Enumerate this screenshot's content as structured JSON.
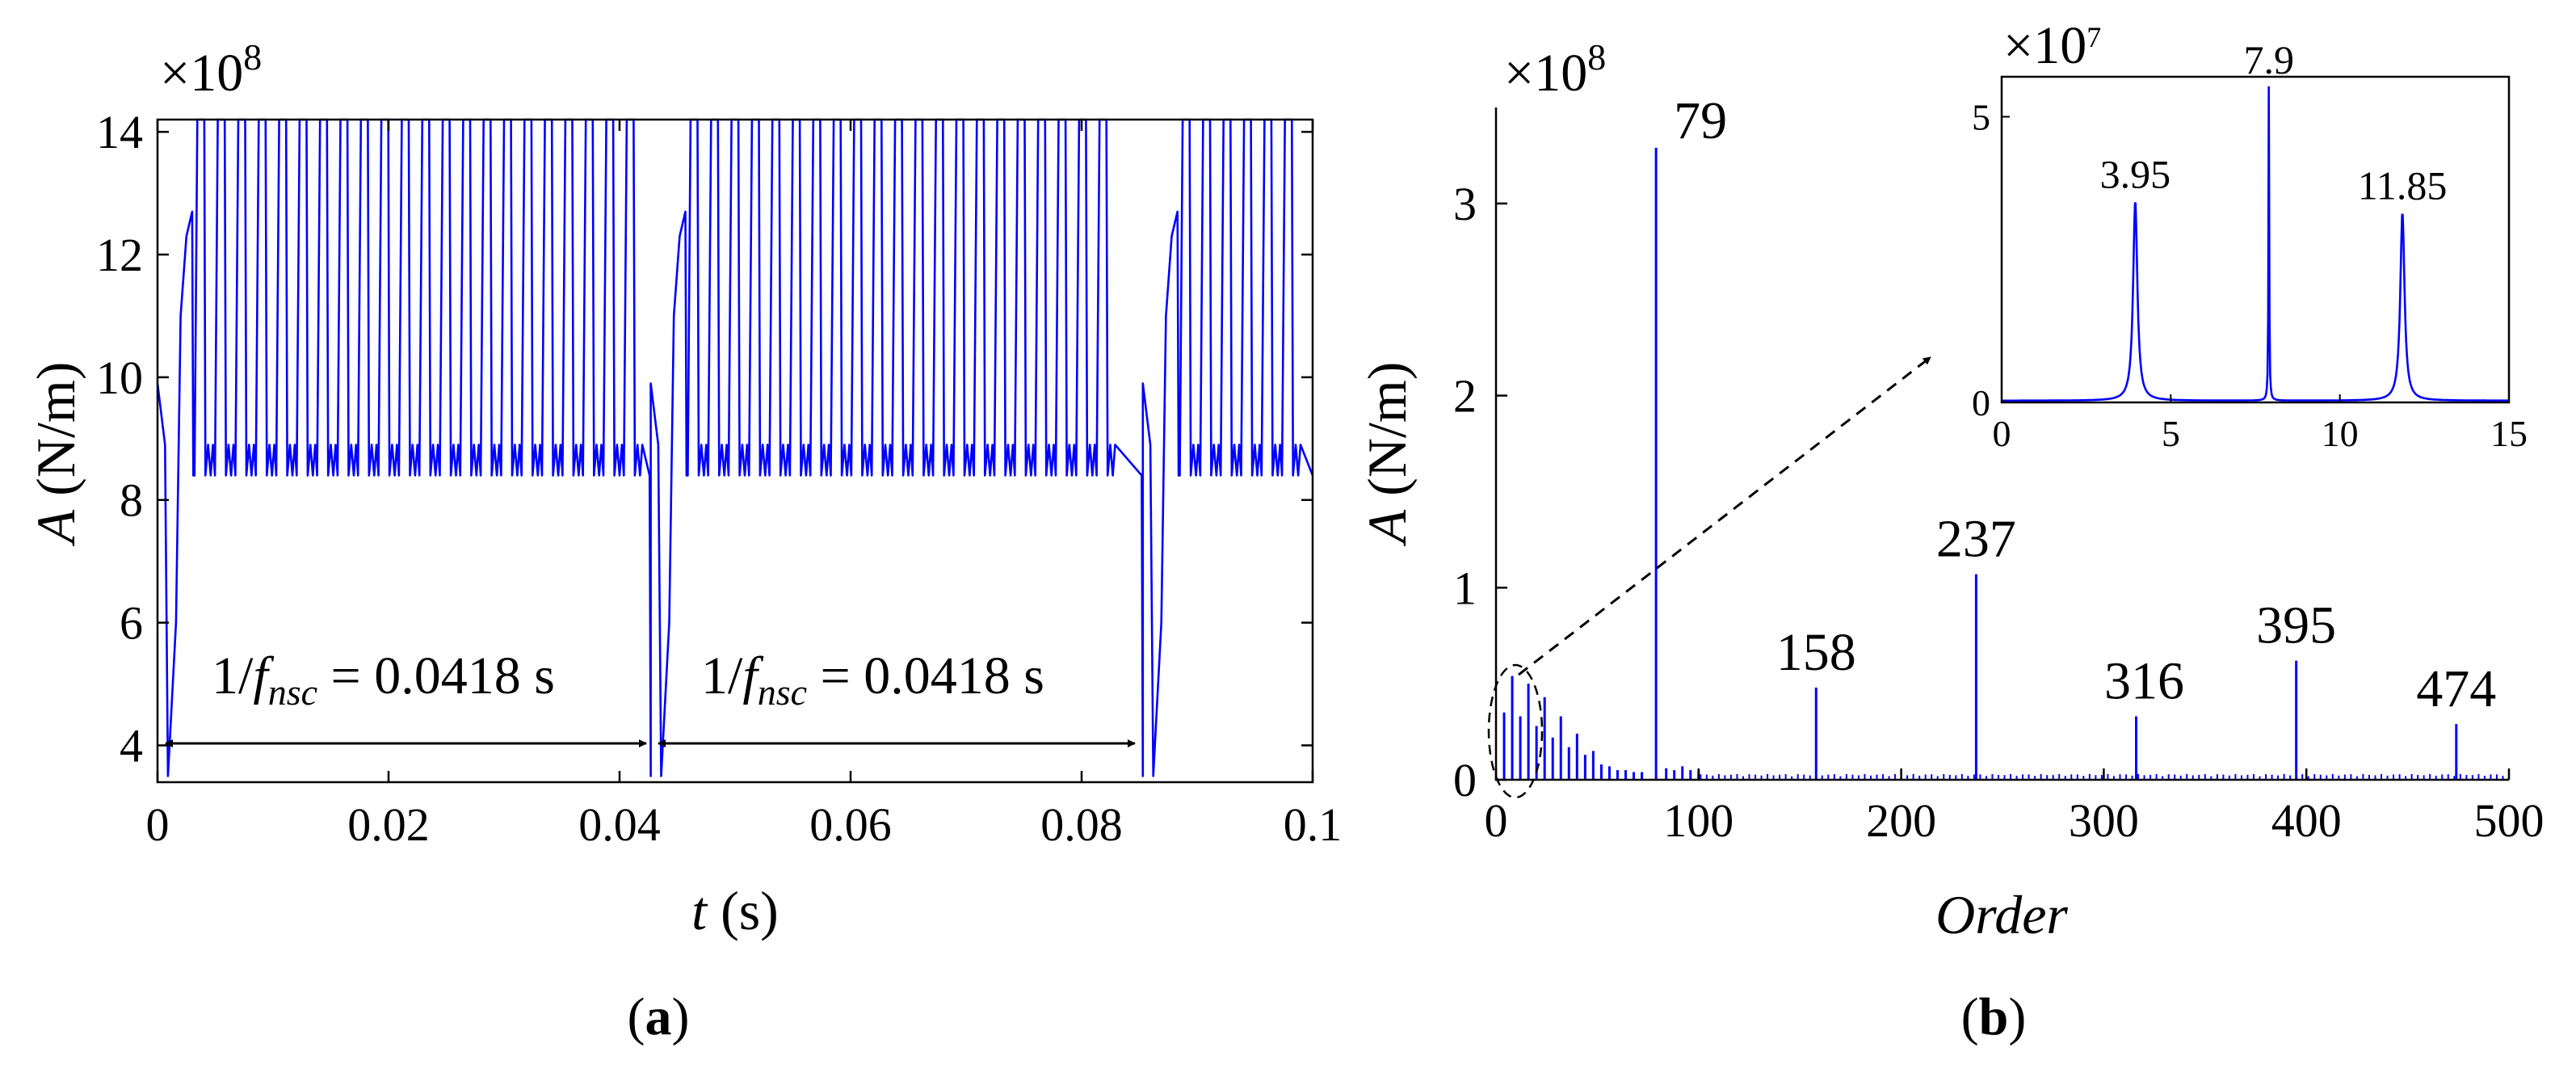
{
  "colors": {
    "series": "#0000ff",
    "axes": "#000000",
    "text": "#000000"
  },
  "panels": {
    "a": {
      "label": "(a)",
      "multiplier": {
        "base": "×10",
        "exp": "8"
      },
      "ylabel": {
        "var": "A",
        "unit": " (N/m)"
      },
      "xlabel": {
        "var": "t",
        "unit": " (s)"
      },
      "xticks": [
        "0",
        "0.02",
        "0.04",
        "0.06",
        "0.08",
        "0.1"
      ],
      "yticks": [
        "4",
        "6",
        "8",
        "10",
        "12",
        "14"
      ],
      "annotations": [
        {
          "pre": "1/",
          "var": "f",
          "sub": "nsc",
          "post": " = 0.0418 s"
        },
        {
          "pre": "1/",
          "var": "f",
          "sub": "nsc",
          "post": " = 0.0418 s"
        }
      ]
    },
    "b": {
      "label": "(b)",
      "multiplier": {
        "base": "×10",
        "exp": "8"
      },
      "ylabel": {
        "var": "A",
        "unit": " (N/m)"
      },
      "xlabel": "Order",
      "xticks": [
        "0",
        "100",
        "200",
        "300",
        "400",
        "500"
      ],
      "yticks": [
        "0",
        "1",
        "2",
        "3"
      ],
      "peak_labels": [
        "79",
        "158",
        "237",
        "316",
        "395",
        "474"
      ],
      "inset": {
        "multiplier": {
          "base": "×10",
          "exp": "7"
        },
        "xticks": [
          "0",
          "5",
          "10",
          "15"
        ],
        "yticks": [
          "0",
          "5"
        ],
        "peak_labels": [
          "3.95",
          "7.9",
          "11.85"
        ]
      }
    }
  },
  "chart_data": [
    {
      "type": "line",
      "panel": "a",
      "xlabel": "t (s)",
      "ylabel": "A (N/m)",
      "y_multiplier": "×10^8",
      "xlim": [
        0,
        0.1
      ],
      "ylim": [
        3.4,
        14.2
      ],
      "grid": false,
      "period_s": 0.0418,
      "restart_times_s": [
        0.0,
        0.0427,
        0.0853
      ],
      "series": [
        {
          "description_of_waveform_values": "each 0.0418 s period: starts ~10, dips to ~3.5, ramps through ~12.7, then ~22 pulses switching between ~14.2 and ~8.4",
          "max": 14.2,
          "plateau_low": 8.4,
          "ripple_level": 8.9,
          "start_value": 9.9,
          "dip_value": 3.5,
          "ramp_peak": 12.7,
          "pulses_per_period": 22
        }
      ],
      "arrows": [
        {
          "from": 0.0,
          "to": 0.0427,
          "y": 3.95
        },
        {
          "from": 0.0427,
          "to": 0.0853,
          "y": 3.95
        }
      ]
    },
    {
      "type": "bar",
      "panel": "b",
      "xlabel": "Order",
      "ylabel": "A (N/m)",
      "y_multiplier": "×10^8",
      "xlim": [
        0,
        500
      ],
      "ylim": [
        0,
        3.5
      ],
      "grid": false,
      "peaks": [
        {
          "order": 79,
          "value": 3.29
        },
        {
          "order": 158,
          "value": 0.48
        },
        {
          "order": 237,
          "value": 1.07
        },
        {
          "order": 316,
          "value": 0.33
        },
        {
          "order": 395,
          "value": 0.62
        },
        {
          "order": 474,
          "value": 0.29
        }
      ],
      "low_order_components": [
        {
          "order": 4,
          "value": 0.35
        },
        {
          "order": 8,
          "value": 0.54
        },
        {
          "order": 12,
          "value": 0.33
        },
        {
          "order": 16,
          "value": 0.5
        },
        {
          "order": 20,
          "value": 0.28
        },
        {
          "order": 24,
          "value": 0.43
        },
        {
          "order": 28,
          "value": 0.22
        },
        {
          "order": 32,
          "value": 0.33
        },
        {
          "order": 36,
          "value": 0.17
        },
        {
          "order": 40,
          "value": 0.24
        },
        {
          "order": 44,
          "value": 0.13
        },
        {
          "order": 48,
          "value": 0.15
        },
        {
          "order": 52,
          "value": 0.08
        },
        {
          "order": 56,
          "value": 0.07
        },
        {
          "order": 60,
          "value": 0.05
        },
        {
          "order": 64,
          "value": 0.05
        },
        {
          "order": 68,
          "value": 0.04
        },
        {
          "order": 72,
          "value": 0.04
        },
        {
          "order": 84,
          "value": 0.06
        },
        {
          "order": 88,
          "value": 0.05
        },
        {
          "order": 92,
          "value": 0.07
        },
        {
          "order": 96,
          "value": 0.05
        },
        {
          "order": 100,
          "value": 0.05
        }
      ],
      "noise_floor": 0.03,
      "inset": {
        "type": "line",
        "y_multiplier": "×10^7",
        "xlim": [
          0,
          15
        ],
        "ylim": [
          0,
          5.7
        ],
        "peaks": [
          {
            "order": 3.95,
            "value": 3.5
          },
          {
            "order": 7.9,
            "value": 5.5
          },
          {
            "order": 11.85,
            "value": 3.3
          }
        ]
      }
    }
  ]
}
